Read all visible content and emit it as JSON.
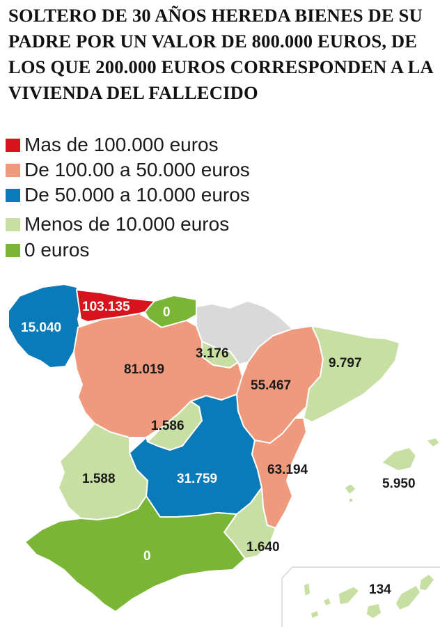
{
  "title": "SOLTERO DE 30 AÑOS HEREDA BIENES DE SU PADRE POR UN VALOR DE 800.000 EUROS, DE LOS QUE 200.000 EUROS CORRESPONDEN A LA VIVIENDA DEL FALLECIDO",
  "colors": {
    "red": "#d7141d",
    "salmon": "#ef9a7c",
    "blue": "#0a7ab8",
    "light_green": "#c7dfa2",
    "green": "#7bb536",
    "no_data": "#d9d9d9"
  },
  "legend": [
    {
      "label": "Mas de 100.000 euros",
      "color": "#d7141d"
    },
    {
      "label": "De 100.00 a 50.000 euros",
      "color": "#ef9a7c"
    },
    {
      "label": "De 50.000 a 10.000 euros",
      "color": "#0a7ab8"
    },
    {
      "label": " Menos de 10.000 euros",
      "color": "#c7dfa2"
    },
    {
      "label": " 0 euros",
      "color": "#7bb536"
    }
  ],
  "regions": {
    "asturias": "103.135",
    "cantabria": "0",
    "galicia": "15.040",
    "la_rioja": "3.176",
    "castilla_y_leon": "81.019",
    "aragon": "55.467",
    "cataluna": "9.797",
    "madrid": "1.586",
    "comunidad_valenciana": "63.194",
    "extremadura": "1.588",
    "castilla_la_mancha": "31.759",
    "baleares": "5.950",
    "andalucia": "0",
    "murcia": "1.640",
    "canarias": "134"
  }
}
